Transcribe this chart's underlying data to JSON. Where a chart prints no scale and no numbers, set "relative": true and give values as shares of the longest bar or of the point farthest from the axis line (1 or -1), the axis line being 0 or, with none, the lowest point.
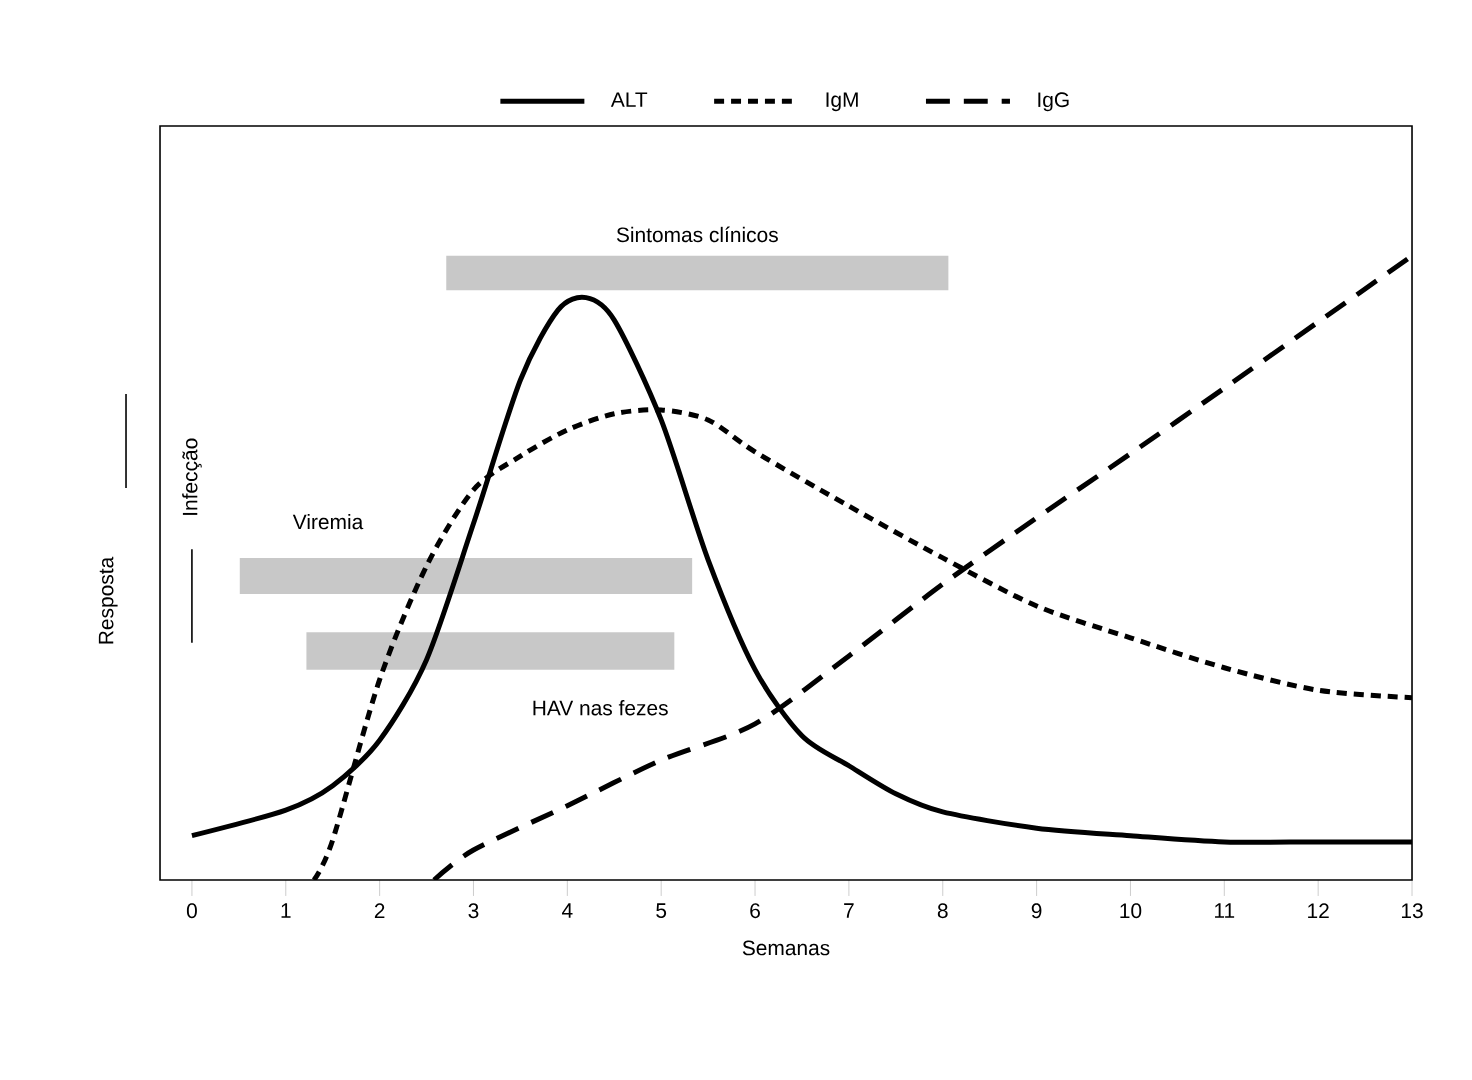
{
  "chart_data": {
    "type": "line",
    "relative": true,
    "xlabel": "Semanas",
    "ylabel": "Resposta",
    "legend": "top",
    "xlim": [
      -0.34,
      13
    ],
    "xticks": [
      0,
      1,
      2,
      3,
      4,
      5,
      6,
      7,
      8,
      9,
      10,
      11,
      12,
      13
    ],
    "series": [
      {
        "name": "ALT",
        "color": "#000000",
        "line_style": "solid",
        "x": [
          0,
          1,
          1.5,
          2,
          2.5,
          3,
          3.5,
          3.9,
          4.2,
          4.5,
          5,
          5.5,
          6,
          6.5,
          7,
          7.5,
          8,
          9,
          10,
          11,
          12,
          13
        ],
        "values": [
          0.071,
          0.112,
          0.151,
          0.224,
          0.353,
          0.571,
          0.801,
          0.913,
          0.933,
          0.897,
          0.737,
          0.513,
          0.337,
          0.231,
          0.183,
          0.138,
          0.109,
          0.083,
          0.071,
          0.061,
          0.061,
          0.061
        ]
      },
      {
        "name": "IgM",
        "color": "#000000",
        "line_style": "dotted",
        "x": [
          1.3,
          1.5,
          2,
          2.5,
          3,
          3.5,
          4,
          4.5,
          5,
          5.5,
          6,
          7,
          8,
          9,
          10,
          11,
          12,
          13
        ],
        "values": [
          0,
          0.064,
          0.321,
          0.503,
          0.625,
          0.679,
          0.721,
          0.747,
          0.753,
          0.737,
          0.686,
          0.599,
          0.516,
          0.439,
          0.388,
          0.34,
          0.304,
          0.292
        ]
      },
      {
        "name": "IgG",
        "color": "#000000",
        "line_style": "dashed",
        "x": [
          2.58,
          3,
          4,
          5,
          6,
          7,
          8,
          9,
          10,
          11,
          12,
          13
        ],
        "values": [
          0,
          0.048,
          0.119,
          0.192,
          0.25,
          0.359,
          0.474,
          0.58,
          0.683,
          0.788,
          0.894,
          1.0
        ]
      }
    ],
    "bands": [
      {
        "axis": "x",
        "from": 2.71,
        "to": 8.06,
        "label": "Sintomas clínicos",
        "color": "#c8c8c8"
      },
      {
        "axis": "x",
        "from": 0.51,
        "to": 5.33,
        "label": "Viremia",
        "color": "#c8c8c8"
      },
      {
        "axis": "x",
        "from": 1.22,
        "to": 5.14,
        "label": "HAV nas fezes",
        "color": "#c8c8c8"
      }
    ],
    "ref_lines": [
      {
        "axis": "x",
        "value": 0,
        "label": "Infecção"
      }
    ]
  }
}
